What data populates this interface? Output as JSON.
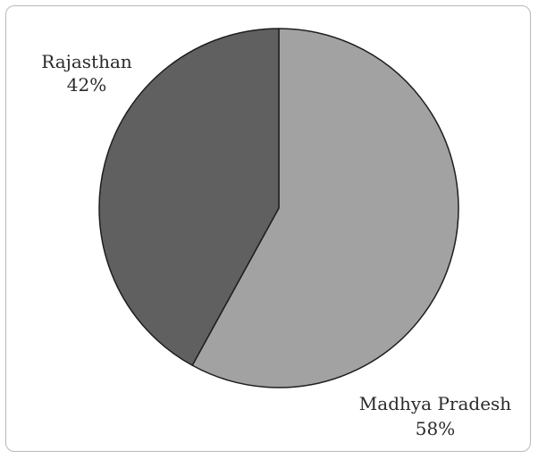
{
  "chart_data": {
    "type": "pie",
    "title": "",
    "slices": [
      {
        "label": "Madhya Pradesh",
        "value": 58,
        "value_label": "58%",
        "color": "#a2a2a2"
      },
      {
        "label": "Rajasthan",
        "value": 42,
        "value_label": "42%",
        "color": "#606060"
      }
    ],
    "outline_color": "#1e1e1e",
    "legend": "none"
  }
}
